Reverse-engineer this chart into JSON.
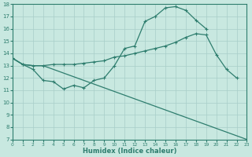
{
  "line1_x": [
    0,
    1,
    2,
    3,
    4,
    5,
    6,
    7,
    8,
    9,
    10,
    11,
    12,
    13,
    14,
    15,
    16,
    17,
    18,
    19,
    20,
    21,
    22,
    23
  ],
  "line1_y": [
    13.6,
    13.1,
    12.7,
    11.8,
    11.7,
    11.1,
    11.4,
    11.2,
    11.8,
    12.0,
    13.0,
    14.4,
    14.6,
    16.6,
    17.0,
    17.7,
    17.8,
    17.5,
    16.7,
    16.0,
    null,
    null,
    null,
    null
  ],
  "line2_x": [
    0,
    1,
    2,
    3,
    4,
    5,
    6,
    7,
    8,
    9,
    10,
    11,
    12,
    13,
    14,
    15,
    16,
    17,
    18,
    19,
    20,
    21,
    22
  ],
  "line2_y": [
    13.6,
    13.1,
    13.0,
    13.0,
    13.1,
    13.1,
    13.1,
    13.2,
    13.3,
    13.4,
    13.7,
    13.8,
    14.0,
    14.2,
    14.4,
    14.6,
    14.9,
    15.3,
    15.6,
    15.5,
    13.9,
    12.7,
    12.0
  ],
  "line3_x": [
    0,
    1,
    2,
    3,
    23
  ],
  "line3_y": [
    13.6,
    13.1,
    13.0,
    13.0,
    7.0
  ],
  "color": "#2e7d6e",
  "bg_color": "#c8e8e0",
  "grid_color": "#a8cec8",
  "xlabel": "Humidex (Indice chaleur)",
  "ylim": [
    7,
    18
  ],
  "xlim": [
    0,
    23
  ],
  "yticks": [
    7,
    8,
    9,
    10,
    11,
    12,
    13,
    14,
    15,
    16,
    17,
    18
  ],
  "xticks": [
    0,
    1,
    2,
    3,
    4,
    5,
    6,
    7,
    8,
    9,
    10,
    11,
    12,
    13,
    14,
    15,
    16,
    17,
    18,
    19,
    20,
    21,
    22,
    23
  ],
  "marker": "+"
}
